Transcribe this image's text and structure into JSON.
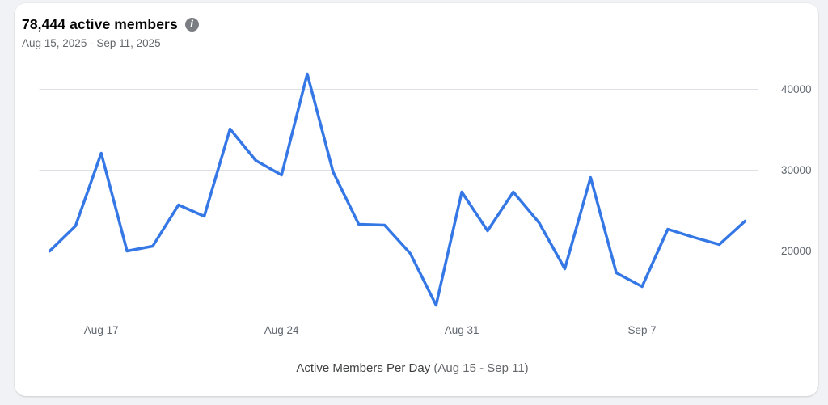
{
  "header": {
    "title": "78,444 active members",
    "date_range": "Aug 15, 2025 - Sep 11, 2025",
    "info_icon_glyph": "i"
  },
  "caption": {
    "main": "Active Members Per Day",
    "suffix": "(Aug 15 - Sep 11)"
  },
  "colors": {
    "accent": "#3578E5",
    "grid": "#DCDFE3",
    "text_primary": "#050505",
    "text_secondary": "#65676B",
    "axis_label": "#606770",
    "page_bg": "#F0F2F5",
    "card_bg": "#FFFFFF",
    "info_icon_bg": "#7A7D81"
  },
  "chart_data": {
    "type": "line",
    "title": "Active Members Per Day (Aug 15 - Sep 11)",
    "xlabel": "",
    "ylabel": "",
    "grid": true,
    "legend": false,
    "ylim": [
      11300,
      42600
    ],
    "x": [
      "Aug 15",
      "Aug 16",
      "Aug 17",
      "Aug 18",
      "Aug 19",
      "Aug 20",
      "Aug 21",
      "Aug 22",
      "Aug 23",
      "Aug 24",
      "Aug 25",
      "Aug 26",
      "Aug 27",
      "Aug 28",
      "Aug 29",
      "Aug 30",
      "Aug 31",
      "Sep 1",
      "Sep 2",
      "Sep 3",
      "Sep 4",
      "Sep 5",
      "Sep 6",
      "Sep 7",
      "Sep 8",
      "Sep 9",
      "Sep 10",
      "Sep 11"
    ],
    "values": [
      20000,
      23100,
      32100,
      20000,
      20600,
      25700,
      24300,
      35100,
      31200,
      29400,
      41900,
      29800,
      23300,
      23200,
      19700,
      13300,
      27300,
      22500,
      27300,
      23500,
      17800,
      29100,
      17300,
      15600,
      22700,
      21700,
      20800,
      23700
    ],
    "y_ticks": [
      20000,
      30000,
      40000
    ],
    "x_ticks": [
      {
        "index": 2,
        "label": "Aug 17"
      },
      {
        "index": 9,
        "label": "Aug 24"
      },
      {
        "index": 16,
        "label": "Aug 31"
      },
      {
        "index": 23,
        "label": "Sep 7"
      }
    ]
  }
}
